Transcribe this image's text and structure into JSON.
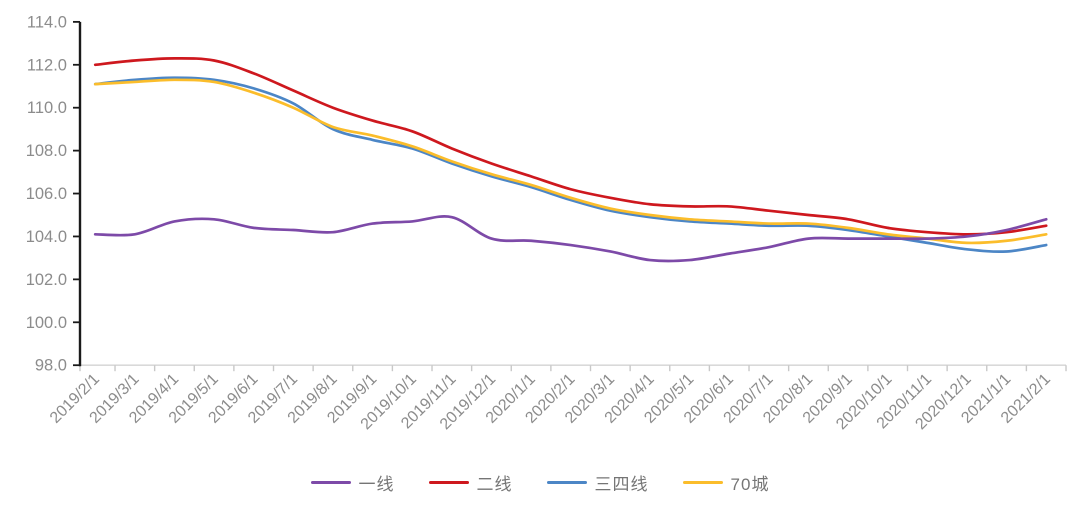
{
  "chart_data": {
    "type": "line",
    "title": "",
    "xlabel": "",
    "ylabel": "",
    "grid": false,
    "legend_position": "bottom",
    "ylim": [
      98.0,
      114.0
    ],
    "y_tick_step": 2.0,
    "y_tick_labels": [
      "98.0",
      "100.0",
      "102.0",
      "104.0",
      "106.0",
      "108.0",
      "110.0",
      "112.0",
      "114.0"
    ],
    "x": [
      "2019/2/1",
      "2019/3/1",
      "2019/4/1",
      "2019/5/1",
      "2019/6/1",
      "2019/7/1",
      "2019/8/1",
      "2019/9/1",
      "2019/10/1",
      "2019/11/1",
      "2019/12/1",
      "2020/1/1",
      "2020/2/1",
      "2020/3/1",
      "2020/4/1",
      "2020/5/1",
      "2020/6/1",
      "2020/7/1",
      "2020/8/1",
      "2020/9/1",
      "2020/10/1",
      "2020/11/1",
      "2020/12/1",
      "2021/1/1",
      "2021/2/1"
    ],
    "series": [
      {
        "key": "second-tier",
        "name": "二线",
        "color": "#CE181E",
        "values": [
          112.0,
          112.2,
          112.3,
          112.2,
          111.6,
          110.8,
          110.0,
          109.4,
          108.9,
          108.1,
          107.4,
          106.8,
          106.2,
          105.8,
          105.5,
          105.4,
          105.4,
          105.2,
          105.0,
          104.8,
          104.4,
          104.2,
          104.1,
          104.2,
          104.5
        ]
      },
      {
        "key": "third-fourth-tier",
        "name": "三四线",
        "color": "#4C86C6",
        "values": [
          111.1,
          111.3,
          111.4,
          111.3,
          110.9,
          110.2,
          109.0,
          108.5,
          108.1,
          107.4,
          106.8,
          106.3,
          105.7,
          105.2,
          104.9,
          104.7,
          104.6,
          104.5,
          104.5,
          104.3,
          104.0,
          103.7,
          103.4,
          103.3,
          103.6
        ]
      },
      {
        "key": "70-cities",
        "name": "70城",
        "color": "#FBBD2B",
        "values": [
          111.1,
          111.2,
          111.3,
          111.2,
          110.7,
          110.0,
          109.1,
          108.7,
          108.2,
          107.5,
          106.9,
          106.4,
          105.8,
          105.3,
          105.0,
          104.8,
          104.7,
          104.6,
          104.6,
          104.4,
          104.1,
          103.9,
          103.7,
          103.8,
          104.1
        ]
      },
      {
        "key": "first-tier",
        "name": "一线",
        "color": "#7D4AA8",
        "values": [
          104.1,
          104.1,
          104.7,
          104.8,
          104.4,
          104.3,
          104.2,
          104.6,
          104.7,
          104.9,
          103.9,
          103.8,
          103.6,
          103.3,
          102.9,
          102.9,
          103.2,
          103.5,
          103.9,
          103.9,
          103.9,
          103.9,
          104.0,
          104.3,
          104.8
        ]
      }
    ],
    "legend_order": [
      "first-tier",
      "second-tier",
      "third-fourth-tier",
      "70-cities"
    ],
    "axis": {
      "tick_label_color": "#8C8C8C",
      "y_axis_line_color": "#1A1A1A",
      "x_axis_line_color": "#D9D9D9",
      "x_tick_color": "#C8C8C8"
    }
  }
}
